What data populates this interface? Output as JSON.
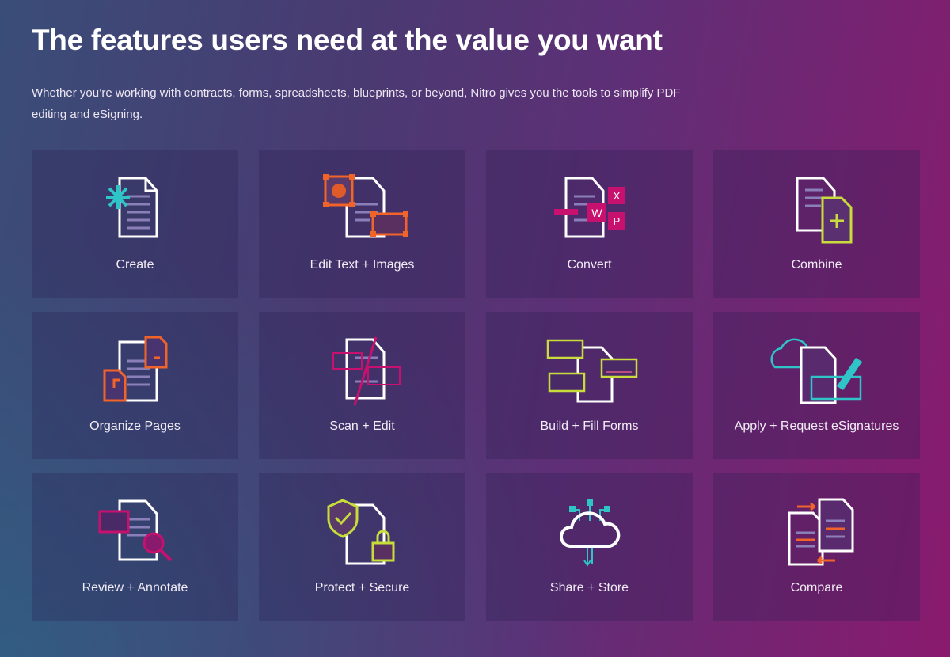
{
  "header": {
    "title": "The features users need at the value you want",
    "subtitle": "Whether you’re working with contracts, forms, spreadsheets, blueprints, or beyond, Nitro gives you the tools to simplify PDF editing and eSigning."
  },
  "colors": {
    "teal": "#2ec4c8",
    "orange": "#f0642a",
    "magenta": "#c8106e",
    "lime": "#c8dc3c",
    "doc_line": "#8a7fb8"
  },
  "features": [
    {
      "label": "Create",
      "icon": "create-document-icon"
    },
    {
      "label": "Edit Text + Images",
      "icon": "edit-text-images-icon"
    },
    {
      "label": "Convert",
      "icon": "convert-icon"
    },
    {
      "label": "Combine",
      "icon": "combine-icon"
    },
    {
      "label": "Organize Pages",
      "icon": "organize-pages-icon"
    },
    {
      "label": "Scan + Edit",
      "icon": "scan-edit-icon"
    },
    {
      "label": "Build + Fill Forms",
      "icon": "forms-icon"
    },
    {
      "label": "Apply + Request eSignatures",
      "icon": "esignature-icon"
    },
    {
      "label": "Review + Annotate",
      "icon": "review-annotate-icon"
    },
    {
      "label": "Protect + Secure",
      "icon": "protect-secure-icon"
    },
    {
      "label": "Share + Store",
      "icon": "cloud-share-icon"
    },
    {
      "label": "Compare",
      "icon": "compare-icon"
    }
  ],
  "convert_letters": {
    "w": "W",
    "x": "X",
    "p": "P"
  }
}
